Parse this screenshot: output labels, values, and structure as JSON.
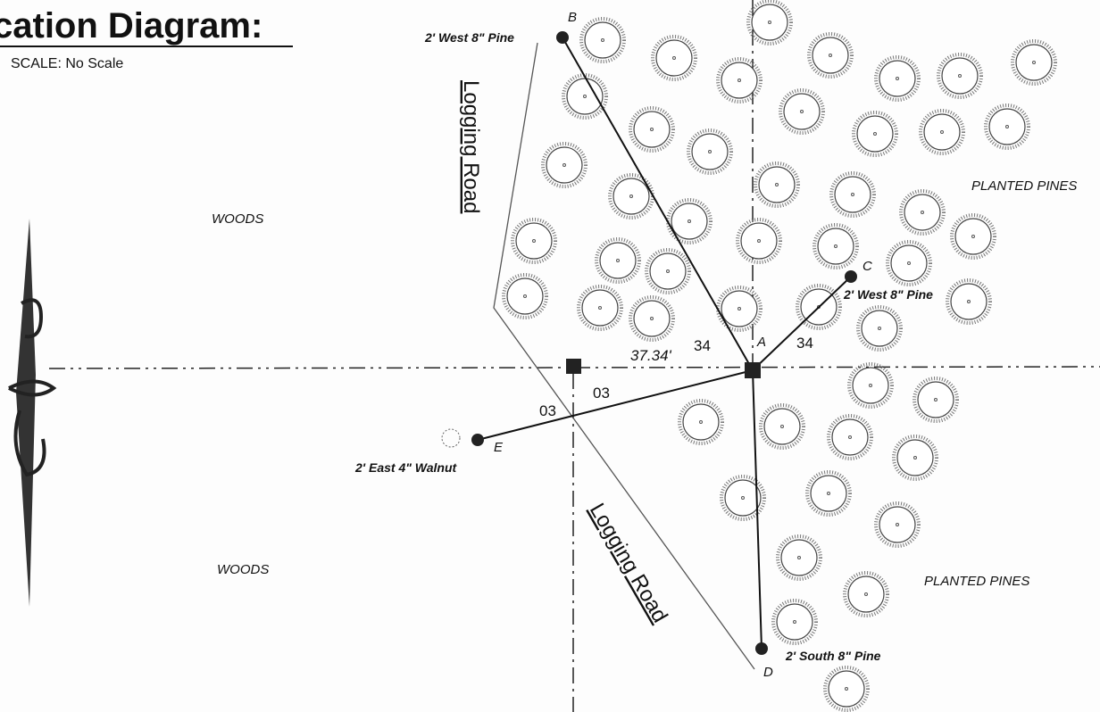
{
  "header": {
    "title": "cation Diagram:",
    "scale": "SCALE: No Scale"
  },
  "areas": [
    {
      "label": "WOODS"
    },
    {
      "label": "WOODS"
    },
    {
      "label": "PLANTED PINES"
    },
    {
      "label": "PLANTED PINES"
    }
  ],
  "roads": [
    {
      "label": "Logging Road"
    },
    {
      "label": "Logging Road"
    }
  ],
  "points": [
    {
      "label": "A"
    },
    {
      "label": "B",
      "note": "2' West 8\" Pine"
    },
    {
      "label": "C",
      "note": "2' West 8\" Pine"
    },
    {
      "label": "D",
      "note": "2' South 8\" Pine"
    },
    {
      "label": "E",
      "note": "2' East 4\" Walnut"
    }
  ],
  "measurements": [
    "34",
    "34",
    "37.34'",
    "03",
    "03"
  ]
}
